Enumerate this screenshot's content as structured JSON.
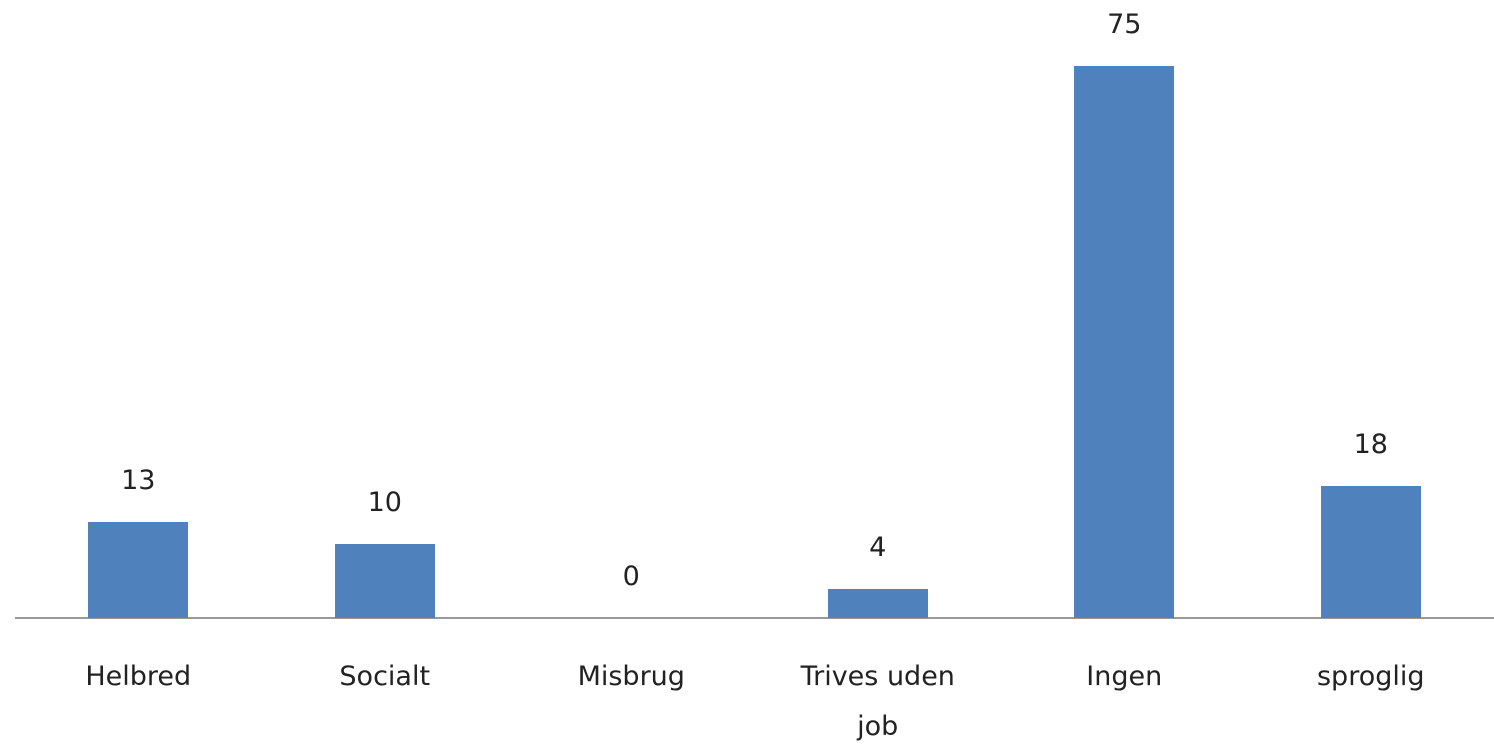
{
  "chart_data": {
    "type": "bar",
    "categories": [
      "Helbred",
      "Socialt",
      "Misbrug",
      "Trives uden job",
      "Ingen",
      "sproglig"
    ],
    "values": [
      13,
      10,
      0,
      4,
      75,
      18
    ],
    "color": "#4f81bd"
  }
}
